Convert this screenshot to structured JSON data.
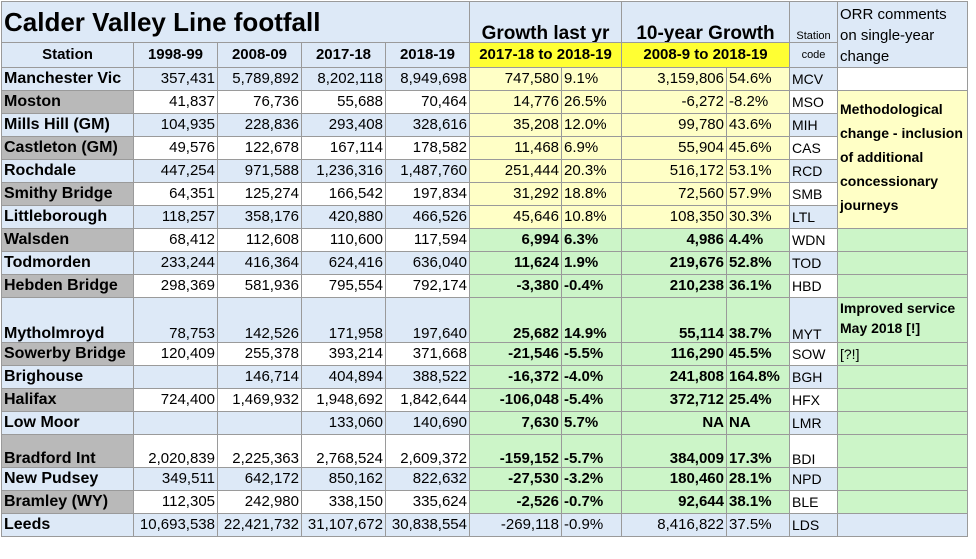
{
  "title": "Calder Valley Line footfall",
  "headers": {
    "station": "Station",
    "y1": "1998-99",
    "y2": "2008-09",
    "y3": "2017-18",
    "y4": "2018-19",
    "growth_last_yr": "Growth last yr",
    "growth_last_yr_range": "2017-18 to 2018-19",
    "ten_year_growth": "10-year Growth",
    "ten_year_range": "2008-9 to 2018-19",
    "station_code_1": "Station",
    "station_code_2": "code",
    "orr_comments": "ORR comments on single-year change"
  },
  "rows": [
    {
      "station": "Manchester Vic",
      "y1": "357,431",
      "y2": "5,789,892",
      "y3": "8,202,118",
      "y4": "8,949,698",
      "g1": "747,580",
      "p1": "9.1%",
      "g10": "3,159,806",
      "p10": "54.6%",
      "code": "MCV"
    },
    {
      "station": "Moston",
      "y1": "41,837",
      "y2": "76,736",
      "y3": "55,688",
      "y4": "70,464",
      "g1": "14,776",
      "p1": "26.5%",
      "g10": "-6,272",
      "p10": "-8.2%",
      "code": "MSO"
    },
    {
      "station": "Mills Hill (GM)",
      "y1": "104,935",
      "y2": "228,836",
      "y3": "293,408",
      "y4": "328,616",
      "g1": "35,208",
      "p1": "12.0%",
      "g10": "99,780",
      "p10": "43.6%",
      "code": "MIH"
    },
    {
      "station": "Castleton (GM)",
      "y1": "49,576",
      "y2": "122,678",
      "y3": "167,114",
      "y4": "178,582",
      "g1": "11,468",
      "p1": "6.9%",
      "g10": "55,904",
      "p10": "45.6%",
      "code": "CAS"
    },
    {
      "station": "Rochdale",
      "y1": "447,254",
      "y2": "971,588",
      "y3": "1,236,316",
      "y4": "1,487,760",
      "g1": "251,444",
      "p1": "20.3%",
      "g10": "516,172",
      "p10": "53.1%",
      "code": "RCD"
    },
    {
      "station": "Smithy Bridge",
      "y1": "64,351",
      "y2": "125,274",
      "y3": "166,542",
      "y4": "197,834",
      "g1": "31,292",
      "p1": "18.8%",
      "g10": "72,560",
      "p10": "57.9%",
      "code": "SMB"
    },
    {
      "station": "Littleborough",
      "y1": "118,257",
      "y2": "358,176",
      "y3": "420,880",
      "y4": "466,526",
      "g1": "45,646",
      "p1": "10.8%",
      "g10": "108,350",
      "p10": "30.3%",
      "code": "LTL"
    },
    {
      "station": "Walsden",
      "y1": "68,412",
      "y2": "112,608",
      "y3": "110,600",
      "y4": "117,594",
      "g1": "6,994",
      "p1": "6.3%",
      "g10": "4,986",
      "p10": "4.4%",
      "code": "WDN"
    },
    {
      "station": "Todmorden",
      "y1": "233,244",
      "y2": "416,364",
      "y3": "624,416",
      "y4": "636,040",
      "g1": "11,624",
      "p1": "1.9%",
      "g10": "219,676",
      "p10": "52.8%",
      "code": "TOD"
    },
    {
      "station": "Hebden Bridge",
      "y1": "298,369",
      "y2": "581,936",
      "y3": "795,554",
      "y4": "792,174",
      "g1": "-3,380",
      "p1": "-0.4%",
      "g10": "210,238",
      "p10": "36.1%",
      "code": "HBD"
    },
    {
      "station": "Mytholmroyd",
      "y1": "78,753",
      "y2": "142,526",
      "y3": "171,958",
      "y4": "197,640",
      "g1": "25,682",
      "p1": "14.9%",
      "g10": "55,114",
      "p10": "38.7%",
      "code": "MYT"
    },
    {
      "station": "Sowerby Bridge",
      "y1": "120,409",
      "y2": "255,378",
      "y3": "393,214",
      "y4": "371,668",
      "g1": "-21,546",
      "p1": "-5.5%",
      "g10": "116,290",
      "p10": "45.5%",
      "code": "SOW"
    },
    {
      "station": "Brighouse",
      "y1": "",
      "y2": "146,714",
      "y3": "404,894",
      "y4": "388,522",
      "g1": "-16,372",
      "p1": "-4.0%",
      "g10": "241,808",
      "p10": "164.8%",
      "code": "BGH"
    },
    {
      "station": "Halifax",
      "y1": "724,400",
      "y2": "1,469,932",
      "y3": "1,948,692",
      "y4": "1,842,644",
      "g1": "-106,048",
      "p1": "-5.4%",
      "g10": "372,712",
      "p10": "25.4%",
      "code": "HFX"
    },
    {
      "station": "Low Moor",
      "y1": "",
      "y2": "",
      "y3": "133,060",
      "y4": "140,690",
      "g1": "7,630",
      "p1": "5.7%",
      "g10": "NA",
      "p10": "NA",
      "code": "LMR"
    },
    {
      "station": "Bradford Int",
      "y1": "2,020,839",
      "y2": "2,225,363",
      "y3": "2,768,524",
      "y4": "2,609,372",
      "g1": "-159,152",
      "p1": "-5.7%",
      "g10": "384,009",
      "p10": "17.3%",
      "code": "BDI"
    },
    {
      "station": "New Pudsey",
      "y1": "349,511",
      "y2": "642,172",
      "y3": "850,162",
      "y4": "822,632",
      "g1": "-27,530",
      "p1": "-3.2%",
      "g10": "180,460",
      "p10": "28.1%",
      "code": "NPD"
    },
    {
      "station": "Bramley (WY)",
      "y1": "112,305",
      "y2": "242,980",
      "y3": "338,150",
      "y4": "335,624",
      "g1": "-2,526",
      "p1": "-0.7%",
      "g10": "92,644",
      "p10": "38.1%",
      "code": "BLE"
    },
    {
      "station": "Leeds",
      "y1": "10,693,538",
      "y2": "22,421,732",
      "y3": "31,107,672",
      "y4": "30,838,554",
      "g1": "-269,118",
      "p1": "-0.9%",
      "g10": "8,416,822",
      "p10": "37.5%",
      "code": "LDS"
    }
  ],
  "comments": {
    "methodological": "Methodological change - inclusion of additional concessionary journeys",
    "improved_service": "Improved service May 2018 [!]",
    "sowerby": "[?!]"
  },
  "colors": {
    "light_blue": "#dde9f7",
    "grey": "#b9b9b9",
    "yellow": "#ffffc6",
    "bright_yellow": "#ffff33",
    "green": "#ccf5c8"
  }
}
